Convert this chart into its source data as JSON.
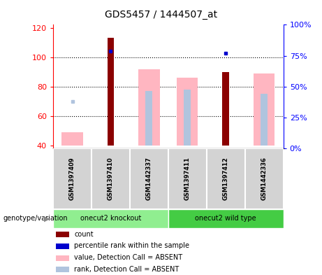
{
  "title": "GDS5457 / 1444507_at",
  "samples": [
    "GSM1397409",
    "GSM1397410",
    "GSM1442337",
    "GSM1397411",
    "GSM1397412",
    "GSM1442336"
  ],
  "ylim_left": [
    38,
    122
  ],
  "ylim_right": [
    0,
    100
  ],
  "yticks_left": [
    40,
    60,
    80,
    100,
    120
  ],
  "yticks_right": [
    0,
    25,
    50,
    75,
    100
  ],
  "count_values": [
    null,
    113,
    null,
    null,
    90,
    null
  ],
  "count_color": "#8B0000",
  "value_absent_values": [
    49,
    null,
    92,
    86,
    null,
    89
  ],
  "value_absent_color": "#FFB6C1",
  "rank_absent_bar_values": [
    null,
    null,
    77,
    78,
    null,
    75
  ],
  "rank_absent_color": "#B0C4DE",
  "percentile_values": [
    null,
    79,
    null,
    null,
    77,
    null
  ],
  "percentile_color": "#0000CD",
  "rank_dot_values": [
    70,
    null,
    null,
    null,
    null,
    null
  ],
  "bar_bottom": 40,
  "pink_bar_width": 0.55,
  "count_bar_width": 0.18,
  "rank_bar_width": 0.18,
  "grid_lines": [
    60,
    80,
    100
  ],
  "group1_label": "onecut2 knockout",
  "group2_label": "onecut2 wild type",
  "group1_color": "#90EE90",
  "group2_color": "#44CC44",
  "genotype_label": "genotype/variation",
  "legend_items": [
    {
      "color": "#8B0000",
      "label": "count"
    },
    {
      "color": "#0000CD",
      "label": "percentile rank within the sample"
    },
    {
      "color": "#FFB6C1",
      "label": "value, Detection Call = ABSENT"
    },
    {
      "color": "#B0C4DE",
      "label": "rank, Detection Call = ABSENT"
    }
  ]
}
